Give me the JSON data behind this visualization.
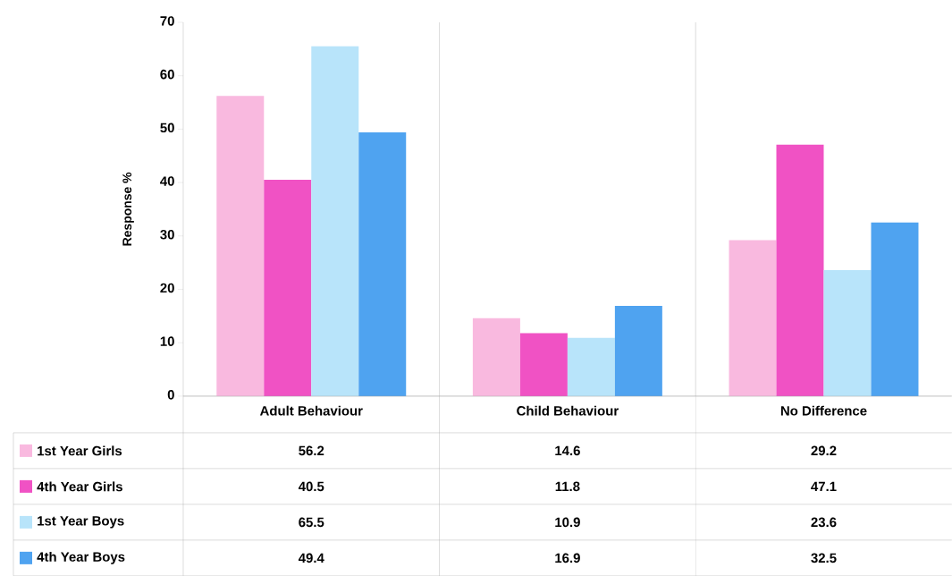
{
  "chart_data": {
    "type": "bar",
    "ylabel": "Response %",
    "categories": [
      "Adult Behaviour",
      "Child Behaviour",
      "No Difference"
    ],
    "series": [
      {
        "name": "1st Year Girls",
        "color": "#f9b9df",
        "values": [
          56.2,
          14.6,
          29.2
        ]
      },
      {
        "name": "4th Year Girls",
        "color": "#f052c4",
        "values": [
          40.5,
          11.8,
          47.1
        ]
      },
      {
        "name": "1st Year Boys",
        "color": "#b8e4fa",
        "values": [
          65.5,
          10.9,
          23.6
        ]
      },
      {
        "name": "4th Year Boys",
        "color": "#4fa3f0",
        "values": [
          49.4,
          16.9,
          32.5
        ]
      }
    ],
    "ylim": [
      0,
      70
    ],
    "yticks": [
      0,
      10,
      20,
      30,
      40,
      50,
      60,
      70
    ],
    "grid": "x",
    "legend": "bottom",
    "data_labels": true
  }
}
